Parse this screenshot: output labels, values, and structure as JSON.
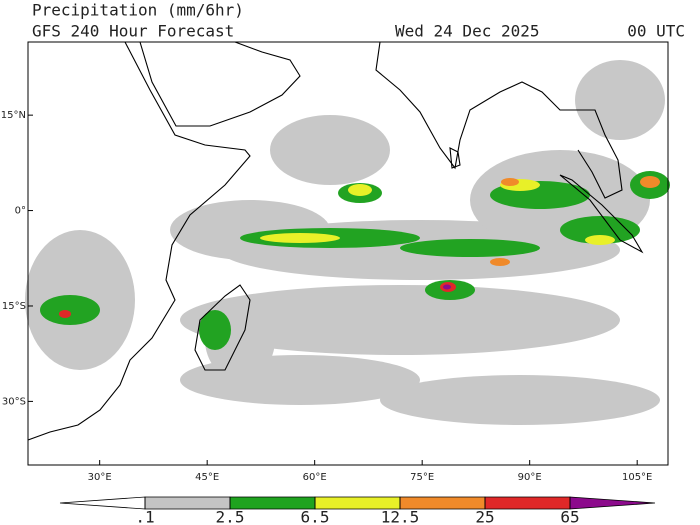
{
  "header": {
    "title": "Precipitation (mm/6hr)",
    "subtitle": "GFS 240 Hour Forecast",
    "valid_date": "Wed 24 Dec 2025",
    "valid_time": "00 UTC"
  },
  "map": {
    "lonlim": [
      20,
      109.3
    ],
    "latlim": [
      -40,
      26.5
    ],
    "lon_ticks": [
      {
        "value": 30,
        "label": "30°E"
      },
      {
        "value": 45,
        "label": "45°E"
      },
      {
        "value": 60,
        "label": "60°E"
      },
      {
        "value": 75,
        "label": "75°E"
      },
      {
        "value": 90,
        "label": "90°E"
      },
      {
        "value": 105,
        "label": "105°E"
      }
    ],
    "lat_ticks": [
      {
        "value": 15,
        "label": "15°N"
      },
      {
        "value": 0,
        "label": "0°"
      },
      {
        "value": -15,
        "label": "15°S"
      },
      {
        "value": -30,
        "label": "30°S"
      }
    ]
  },
  "legend": {
    "levels": [
      {
        "value": 0.1,
        "label": ".1"
      },
      2.5,
      6.5,
      12.5,
      25,
      65
    ],
    "colors": [
      "#ffffff",
      "#c4c4c4",
      "#1fa31f",
      "#e8f028",
      "#f08a2a",
      "#e02828",
      "#8c0a8c"
    ]
  }
}
